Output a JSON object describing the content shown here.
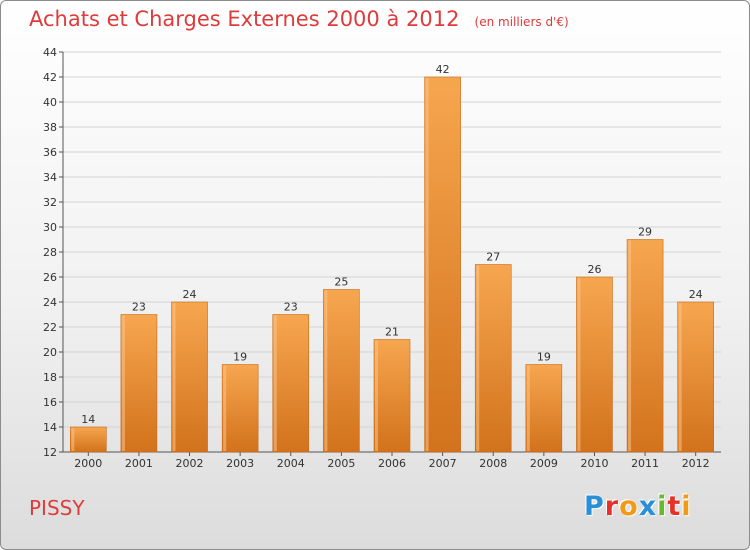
{
  "header": {
    "title": "Achats et Charges Externes 2000 à 2012",
    "subtitle": "(en milliers d'€)"
  },
  "footer": {
    "place": "PISSY",
    "brand": "Proxiti",
    "brand_letters": [
      {
        "ch": "P",
        "color": "#2a8fd6"
      },
      {
        "ch": "r",
        "color": "#e8302a"
      },
      {
        "ch": "o",
        "color": "#f29a16"
      },
      {
        "ch": "x",
        "color": "#2a8fd6"
      },
      {
        "ch": "i",
        "color": "#6ab82e"
      },
      {
        "ch": "t",
        "color": "#e8302a"
      },
      {
        "ch": "i",
        "color": "#f29a16"
      }
    ]
  },
  "colors": {
    "title": "#de3b3b",
    "bar_light": "#f7a650",
    "bar_dark": "#d2721c",
    "bar_edge": "#c86a18"
  },
  "chart_data": {
    "type": "bar",
    "title": "Achats et Charges Externes 2000 à 2012",
    "subtitle": "(en milliers d'€)",
    "categories": [
      "2000",
      "2001",
      "2002",
      "2003",
      "2004",
      "2005",
      "2006",
      "2007",
      "2008",
      "2009",
      "2010",
      "2011",
      "2012"
    ],
    "values": [
      14,
      23,
      24,
      19,
      23,
      25,
      21,
      42,
      27,
      19,
      26,
      29,
      24
    ],
    "ylim": [
      12,
      44
    ],
    "yticks": [
      12,
      14,
      16,
      18,
      20,
      22,
      24,
      26,
      28,
      30,
      32,
      34,
      36,
      38,
      40,
      42,
      44
    ],
    "grid": true,
    "xlabel": "",
    "ylabel": ""
  }
}
